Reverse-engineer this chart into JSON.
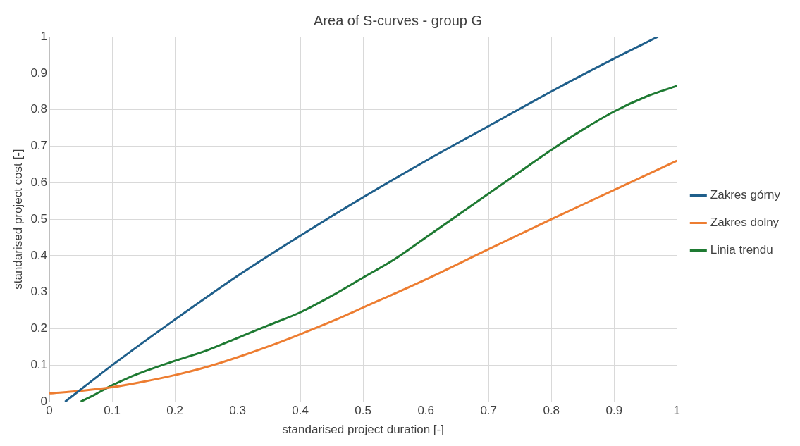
{
  "chart_data": {
    "type": "line",
    "title": "Area of S-curves - group G",
    "xlabel": "standarised project duration [-]",
    "ylabel": "standarised project cost [-]",
    "xlim": [
      0,
      1
    ],
    "xticks": [
      0,
      0.1,
      0.2,
      0.3,
      0.4,
      0.5,
      0.6,
      0.7,
      0.8,
      0.9,
      1
    ],
    "ylim": [
      0,
      1
    ],
    "yticks": [
      0,
      0.1,
      0.2,
      0.3,
      0.4,
      0.5,
      0.6,
      0.7,
      0.8,
      0.9,
      1
    ],
    "grid": true,
    "legend": "right",
    "marker": "none",
    "line_style": "solid",
    "series": [
      {
        "name": "Zakres górny",
        "color": "#1f5f8b",
        "x": [
          0.025,
          0.1,
          0.2,
          0.3,
          0.4,
          0.5,
          0.6,
          0.7,
          0.8,
          0.9,
          0.97
        ],
        "values": [
          0,
          0.1,
          0.225,
          0.345,
          0.455,
          0.56,
          0.66,
          0.755,
          0.85,
          0.94,
          1
        ]
      },
      {
        "name": "Zakres dolny",
        "color": "#ed7d31",
        "x": [
          0,
          0.05,
          0.1,
          0.15,
          0.2,
          0.25,
          0.3,
          0.35,
          0.4,
          0.45,
          0.5,
          0.6,
          0.7,
          0.8,
          0.9,
          1
        ],
        "values": [
          0.023,
          0.03,
          0.04,
          0.055,
          0.073,
          0.095,
          0.122,
          0.152,
          0.185,
          0.22,
          0.258,
          0.335,
          0.418,
          0.5,
          0.58,
          0.66
        ]
      },
      {
        "name": "Linia trendu",
        "color": "#1e7a32",
        "x": [
          0.05,
          0.075,
          0.1,
          0.125,
          0.15,
          0.2,
          0.25,
          0.3,
          0.35,
          0.4,
          0.45,
          0.5,
          0.55,
          0.6,
          0.65,
          0.7,
          0.75,
          0.8,
          0.85,
          0.9,
          0.95,
          1
        ],
        "values": [
          0,
          0.022,
          0.045,
          0.065,
          0.082,
          0.112,
          0.14,
          0.175,
          0.21,
          0.245,
          0.29,
          0.34,
          0.39,
          0.45,
          0.51,
          0.57,
          0.63,
          0.69,
          0.745,
          0.795,
          0.835,
          0.865
        ]
      }
    ]
  }
}
